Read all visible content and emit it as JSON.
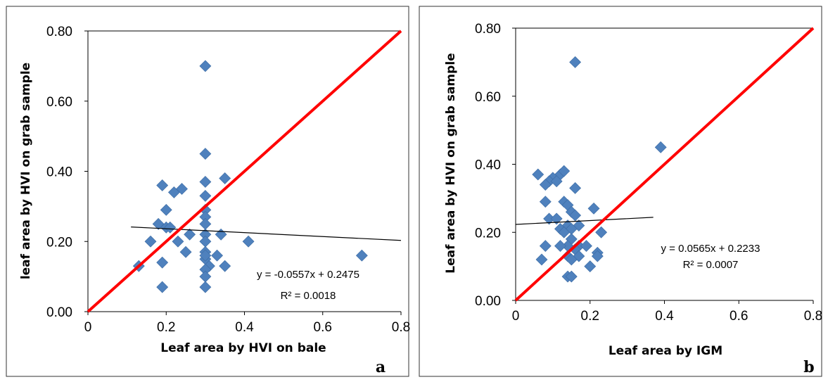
{
  "chart_data": [
    {
      "type": "scatter",
      "xlabel": "Leaf area by HVI on bale",
      "ylabel": "leaf area by HVI on grab sample",
      "xlim": [
        0,
        0.8
      ],
      "ylim": [
        0,
        0.8
      ],
      "xticks": [
        "0",
        "0.2",
        "0.4",
        "0.6",
        "0.8"
      ],
      "yticks": [
        "0.00",
        "0.20",
        "0.40",
        "0.60",
        "0.80"
      ],
      "panel_label": "a",
      "equation": "y = -0.0557x + 0.2475",
      "r2": "R² = 0.0018",
      "marker_color": "#4f81bd",
      "identity_line_color": "#ff0000",
      "trendline": {
        "slope": -0.0557,
        "intercept": 0.2475,
        "x_range": [
          0.11,
          0.8
        ]
      },
      "points": [
        [
          0.3,
          0.7
        ],
        [
          0.3,
          0.45
        ],
        [
          0.3,
          0.37
        ],
        [
          0.35,
          0.38
        ],
        [
          0.19,
          0.36
        ],
        [
          0.22,
          0.34
        ],
        [
          0.24,
          0.35
        ],
        [
          0.3,
          0.33
        ],
        [
          0.2,
          0.29
        ],
        [
          0.3,
          0.29
        ],
        [
          0.3,
          0.27
        ],
        [
          0.3,
          0.25
        ],
        [
          0.18,
          0.25
        ],
        [
          0.2,
          0.24
        ],
        [
          0.21,
          0.24
        ],
        [
          0.3,
          0.22
        ],
        [
          0.3,
          0.2
        ],
        [
          0.34,
          0.22
        ],
        [
          0.16,
          0.2
        ],
        [
          0.23,
          0.2
        ],
        [
          0.26,
          0.22
        ],
        [
          0.25,
          0.17
        ],
        [
          0.3,
          0.17
        ],
        [
          0.3,
          0.15
        ],
        [
          0.3,
          0.16
        ],
        [
          0.31,
          0.13
        ],
        [
          0.33,
          0.16
        ],
        [
          0.35,
          0.13
        ],
        [
          0.41,
          0.2
        ],
        [
          0.13,
          0.13
        ],
        [
          0.19,
          0.14
        ],
        [
          0.3,
          0.12
        ],
        [
          0.3,
          0.1
        ],
        [
          0.19,
          0.07
        ],
        [
          0.3,
          0.07
        ],
        [
          0.7,
          0.16
        ]
      ]
    },
    {
      "type": "scatter",
      "xlabel": "Leaf area by IGM",
      "ylabel": "Leaf area by HVI on grab sample",
      "xlim": [
        0,
        0.8
      ],
      "ylim": [
        0,
        0.8
      ],
      "xticks": [
        "0",
        "0.2",
        "0.4",
        "0.6",
        "0.8"
      ],
      "yticks": [
        "0.00",
        "0.20",
        "0.40",
        "0.60",
        "0.80"
      ],
      "panel_label": "b",
      "equation": "y = 0.0565x + 0.2233",
      "r2": "R² = 0.0007",
      "marker_color": "#4f81bd",
      "identity_line_color": "#ff0000",
      "trendline": {
        "slope": 0.0565,
        "intercept": 0.2233,
        "x_range": [
          0.0,
          0.37
        ]
      },
      "points": [
        [
          0.16,
          0.7
        ],
        [
          0.39,
          0.45
        ],
        [
          0.06,
          0.37
        ],
        [
          0.12,
          0.37
        ],
        [
          0.13,
          0.38
        ],
        [
          0.1,
          0.36
        ],
        [
          0.09,
          0.35
        ],
        [
          0.11,
          0.35
        ],
        [
          0.08,
          0.34
        ],
        [
          0.16,
          0.33
        ],
        [
          0.08,
          0.29
        ],
        [
          0.13,
          0.29
        ],
        [
          0.14,
          0.28
        ],
        [
          0.15,
          0.26
        ],
        [
          0.16,
          0.25
        ],
        [
          0.09,
          0.24
        ],
        [
          0.11,
          0.24
        ],
        [
          0.21,
          0.27
        ],
        [
          0.14,
          0.22
        ],
        [
          0.17,
          0.22
        ],
        [
          0.12,
          0.21
        ],
        [
          0.15,
          0.21
        ],
        [
          0.13,
          0.2
        ],
        [
          0.23,
          0.2
        ],
        [
          0.15,
          0.18
        ],
        [
          0.14,
          0.16
        ],
        [
          0.12,
          0.16
        ],
        [
          0.17,
          0.16
        ],
        [
          0.19,
          0.16
        ],
        [
          0.08,
          0.16
        ],
        [
          0.16,
          0.15
        ],
        [
          0.22,
          0.14
        ],
        [
          0.14,
          0.13
        ],
        [
          0.17,
          0.13
        ],
        [
          0.22,
          0.13
        ],
        [
          0.07,
          0.12
        ],
        [
          0.15,
          0.12
        ],
        [
          0.2,
          0.1
        ],
        [
          0.14,
          0.07
        ],
        [
          0.15,
          0.07
        ]
      ]
    }
  ]
}
